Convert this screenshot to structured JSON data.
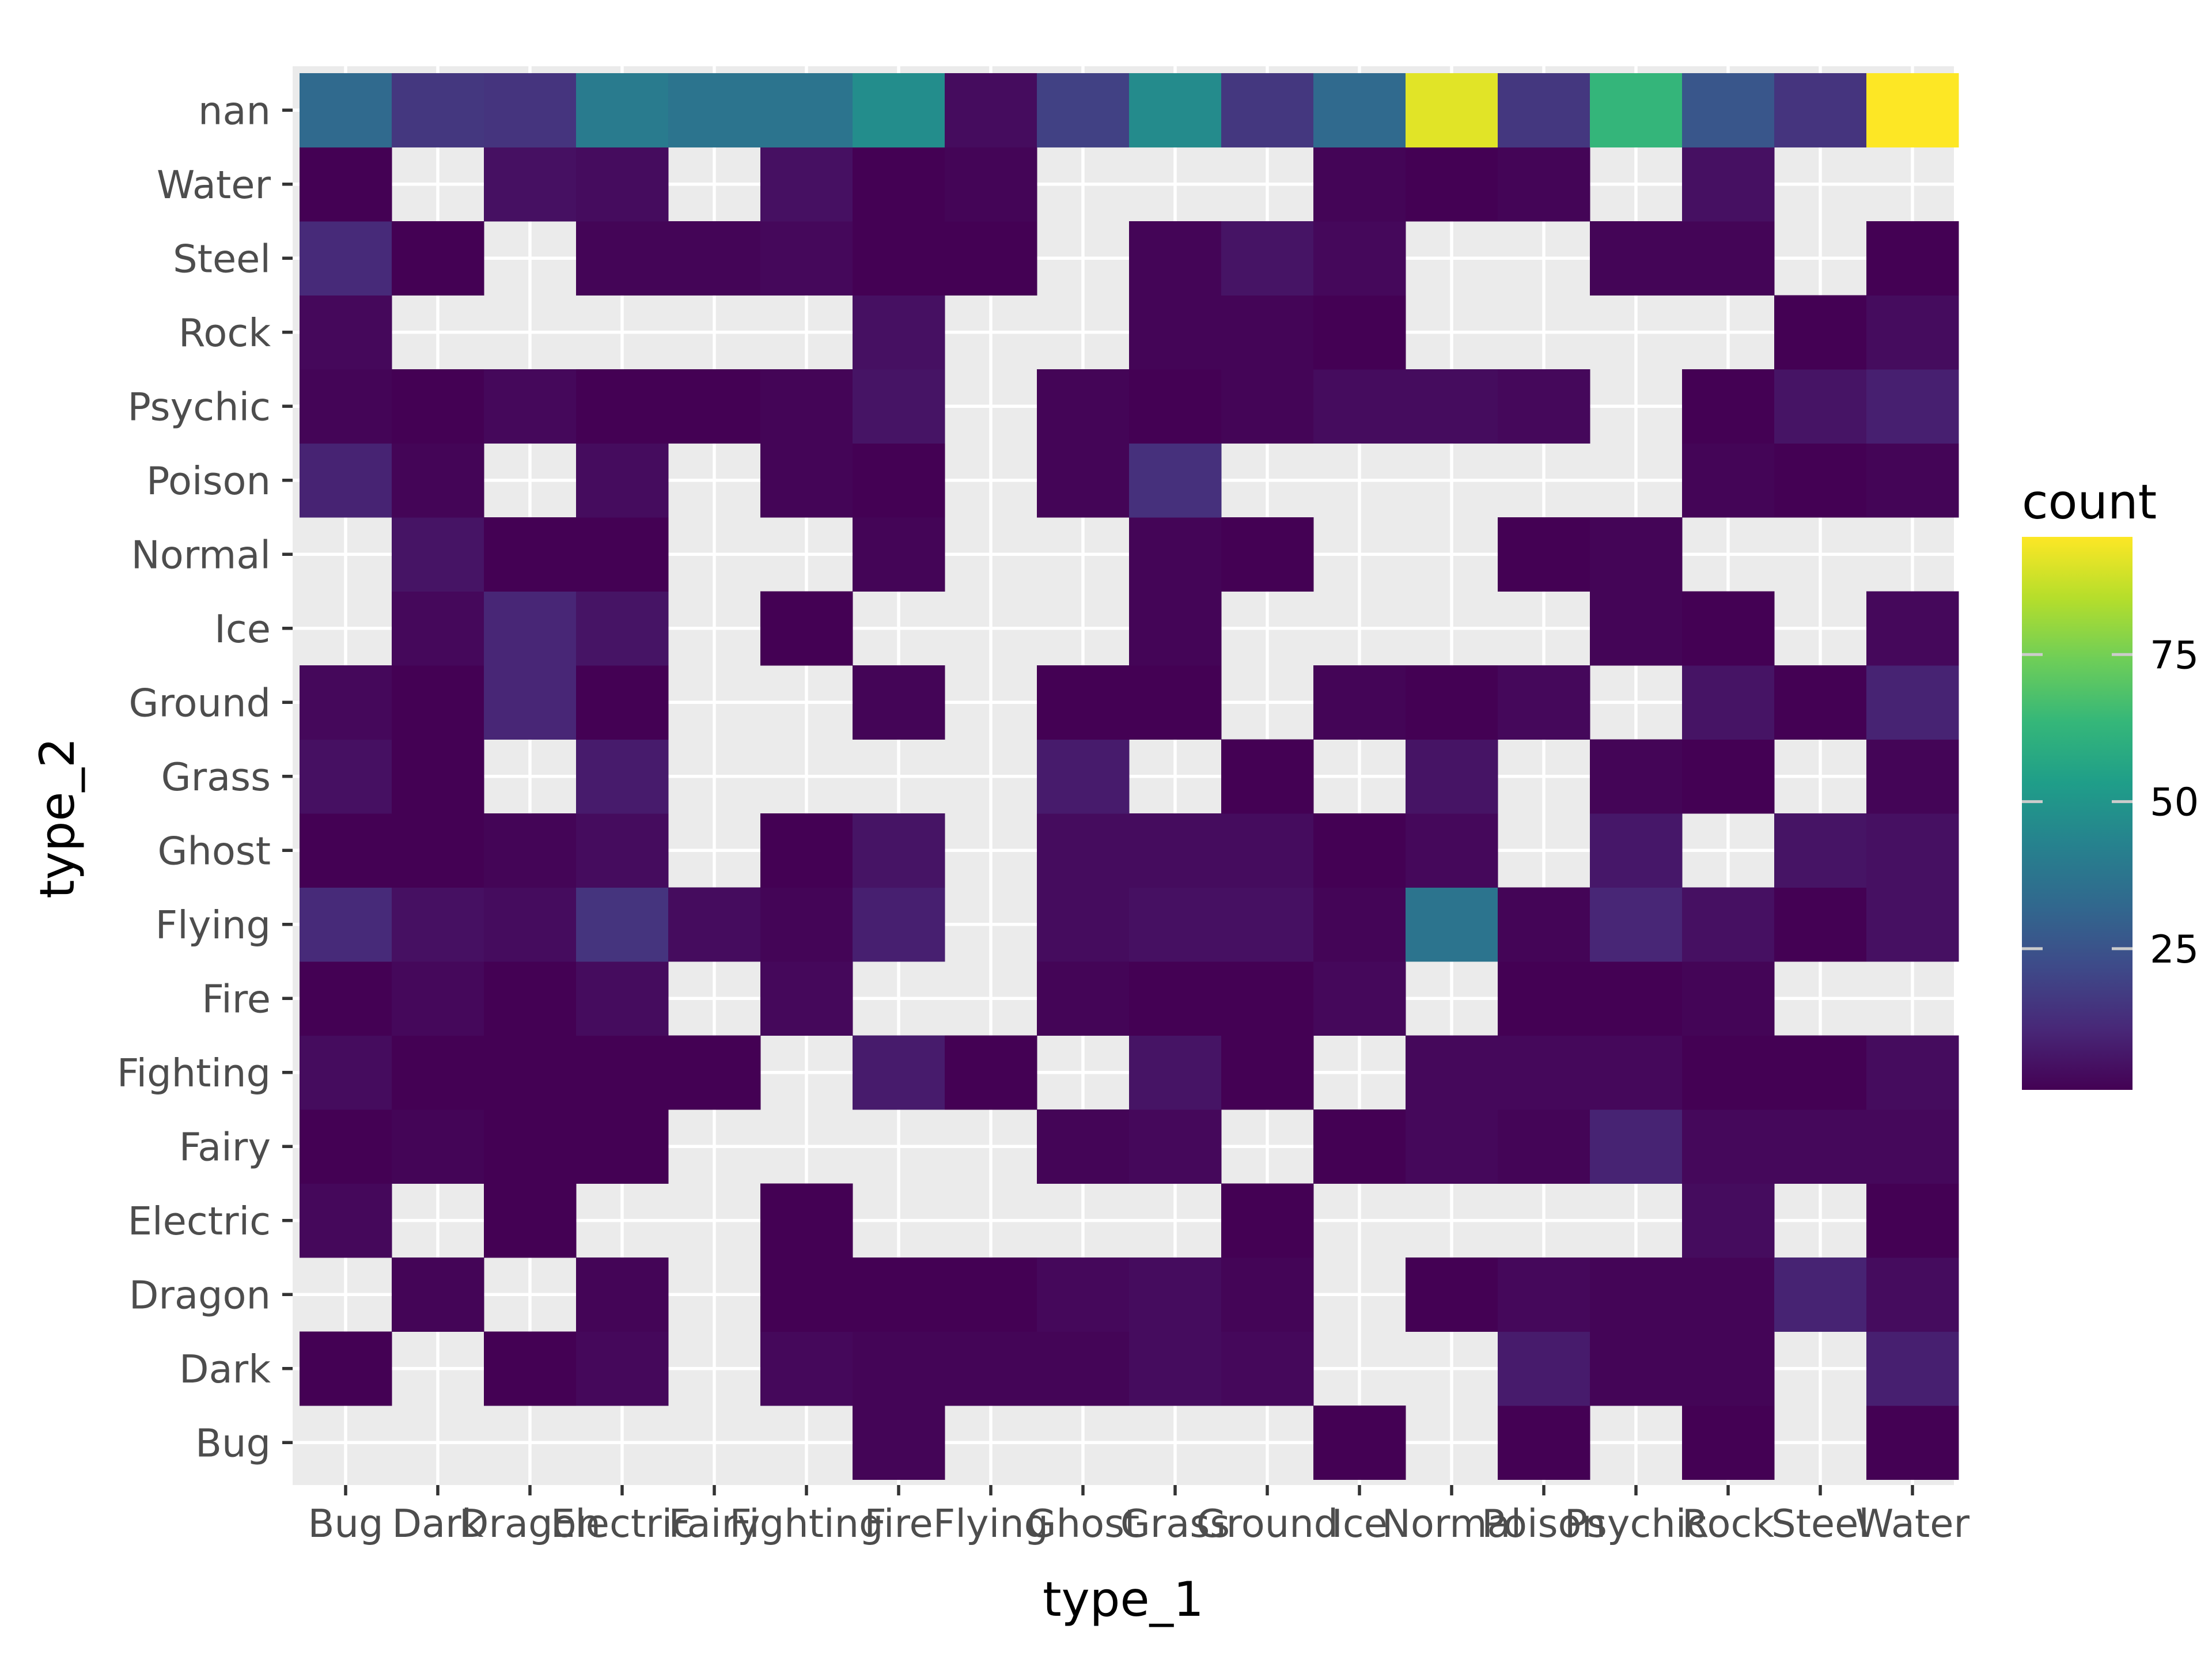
{
  "chart_data": {
    "type": "heatmap",
    "xlabel": "type_1",
    "ylabel": "type_2",
    "x_categories": [
      "Bug",
      "Dark",
      "Dragon",
      "Electric",
      "Fairy",
      "Fighting",
      "Fire",
      "Flying",
      "Ghost",
      "Grass",
      "Ground",
      "Ice",
      "Normal",
      "Poison",
      "Psychic",
      "Rock",
      "Steel",
      "Water"
    ],
    "y_categories": [
      "Bug",
      "Dark",
      "Dragon",
      "Electric",
      "Fairy",
      "Fighting",
      "Fire",
      "Flying",
      "Ghost",
      "Grass",
      "Ground",
      "Ice",
      "Normal",
      "Poison",
      "Psychic",
      "Rock",
      "Steel",
      "Water",
      "nan"
    ],
    "values": [
      [
        null,
        null,
        null,
        null,
        null,
        null,
        2,
        null,
        null,
        null,
        null,
        1,
        null,
        1,
        null,
        1,
        null,
        1
      ],
      [
        1,
        null,
        1,
        3,
        null,
        3,
        2,
        2,
        2,
        4,
        3,
        null,
        null,
        8,
        2,
        2,
        null,
        9
      ],
      [
        null,
        2,
        null,
        2,
        null,
        1,
        1,
        1,
        3,
        4,
        2,
        null,
        1,
        3,
        2,
        2,
        10,
        4
      ],
      [
        3,
        null,
        1,
        null,
        null,
        1,
        null,
        null,
        null,
        null,
        1,
        null,
        null,
        null,
        null,
        4,
        null,
        1
      ],
      [
        1,
        2,
        1,
        1,
        null,
        null,
        null,
        null,
        2,
        3,
        null,
        1,
        3,
        2,
        10,
        3,
        3,
        3
      ],
      [
        4,
        1,
        1,
        1,
        1,
        null,
        8,
        1,
        null,
        6,
        1,
        null,
        3,
        3,
        3,
        1,
        1,
        4
      ],
      [
        1,
        3,
        1,
        4,
        null,
        3,
        null,
        null,
        2,
        1,
        1,
        3,
        null,
        1,
        1,
        2,
        null,
        null
      ],
      [
        12,
        5,
        4,
        15,
        4,
        2,
        9,
        null,
        4,
        5,
        5,
        2,
        37,
        2,
        11,
        5,
        1,
        5
      ],
      [
        1,
        1,
        2,
        4,
        null,
        1,
        6,
        null,
        4,
        4,
        4,
        1,
        3,
        null,
        7,
        null,
        6,
        5
      ],
      [
        5,
        1,
        null,
        8,
        null,
        null,
        null,
        null,
        8,
        null,
        1,
        null,
        6,
        null,
        2,
        1,
        null,
        2
      ],
      [
        3,
        1,
        11,
        1,
        null,
        null,
        2,
        null,
        1,
        1,
        null,
        2,
        1,
        3,
        null,
        6,
        1,
        10
      ],
      [
        null,
        3,
        11,
        6,
        null,
        1,
        null,
        null,
        null,
        2,
        null,
        null,
        null,
        null,
        2,
        1,
        null,
        3
      ],
      [
        null,
        6,
        1,
        1,
        null,
        null,
        2,
        null,
        null,
        2,
        1,
        null,
        null,
        1,
        2,
        null,
        null,
        null
      ],
      [
        10,
        2,
        null,
        4,
        null,
        2,
        1,
        null,
        2,
        14,
        null,
        null,
        null,
        null,
        null,
        2,
        1,
        2
      ],
      [
        2,
        1,
        3,
        1,
        1,
        2,
        6,
        null,
        2,
        1,
        2,
        4,
        4,
        3,
        null,
        1,
        6,
        9
      ],
      [
        3,
        null,
        null,
        null,
        null,
        null,
        5,
        null,
        null,
        2,
        2,
        1,
        null,
        null,
        null,
        null,
        1,
        4
      ],
      [
        12,
        1,
        null,
        2,
        2,
        3,
        1,
        1,
        null,
        2,
        6,
        3,
        null,
        null,
        2,
        2,
        null,
        1
      ],
      [
        1,
        null,
        5,
        4,
        null,
        5,
        1,
        2,
        null,
        null,
        null,
        2,
        1,
        2,
        null,
        5,
        null,
        null
      ],
      [
        33,
        16,
        15,
        40,
        37,
        37,
        47,
        4,
        19,
        46,
        16,
        33,
        91,
        16,
        63,
        26,
        15,
        95
      ]
    ],
    "colorbar": {
      "title": "count",
      "range": [
        1,
        95
      ],
      "ticks": [
        25,
        50,
        75
      ],
      "colormap": "viridis"
    },
    "grid": true,
    "legend_position": "right",
    "colors": {
      "panel_background": "#ebebeb",
      "grid": "#ffffff",
      "viridis": [
        "#440154",
        "#482878",
        "#3e4a89",
        "#31688e",
        "#26828e",
        "#1f9e89",
        "#35b779",
        "#6ece58",
        "#b5de2b",
        "#fde725"
      ]
    }
  }
}
